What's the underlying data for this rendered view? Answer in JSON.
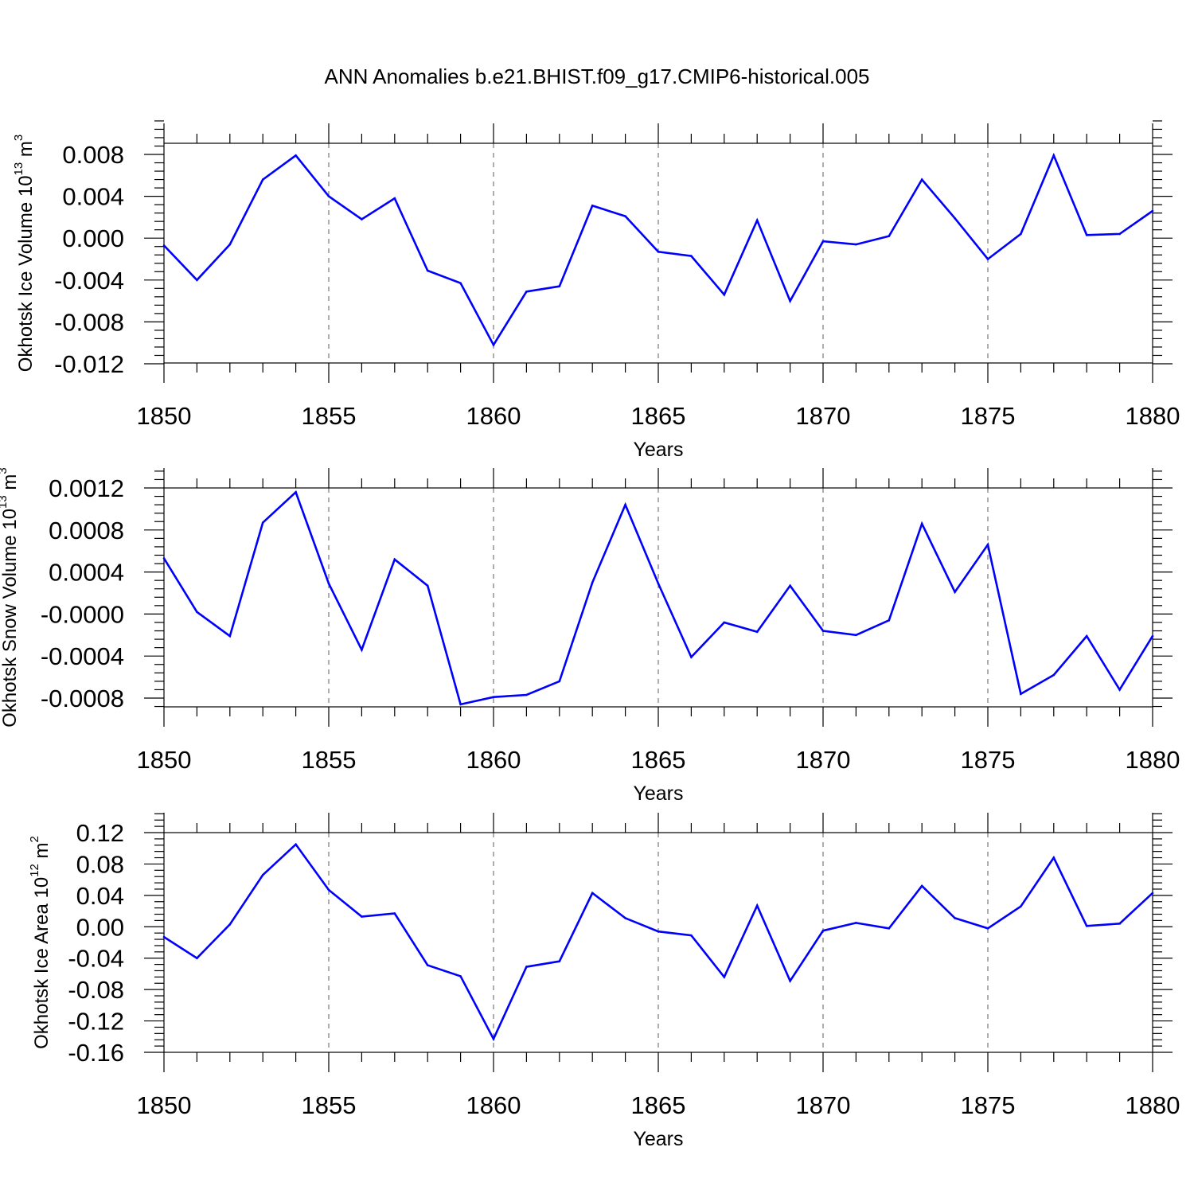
{
  "figure": {
    "title": "ANN Anomalies b.e21.BHIST.f09_g17.CMIP6-historical.005"
  },
  "chart_data": [
    {
      "type": "line",
      "title": "",
      "xlabel": "Years",
      "ylabel": "Okhotsk Ice Volume 10",
      "ylabel_exponent": "13",
      "ylabel_unit": "m",
      "ylabel_unit_exponent": "3",
      "xlim": [
        1850,
        1880
      ],
      "ylim": [
        -0.012,
        0.009
      ],
      "xticks": [
        1850,
        1855,
        1860,
        1865,
        1870,
        1875,
        1880
      ],
      "xtick_labels": [
        "1850",
        "1855",
        "1860",
        "1865",
        "1870",
        "1875",
        "1880"
      ],
      "yticks": [
        -0.012,
        -0.008,
        -0.004,
        0.0,
        0.004,
        0.008
      ],
      "ytick_labels": [
        "-0.012",
        "-0.008",
        "-0.004",
        "0.000",
        "0.004",
        "0.008"
      ],
      "grid": "vertical-dashed",
      "series": [
        {
          "name": "Okhotsk Ice Volume",
          "color": "#0000ff",
          "x": [
            1850,
            1851,
            1852,
            1853,
            1854,
            1855,
            1856,
            1857,
            1858,
            1859,
            1860,
            1861,
            1862,
            1863,
            1864,
            1865,
            1866,
            1867,
            1868,
            1869,
            1870,
            1871,
            1872,
            1873,
            1874,
            1875,
            1876,
            1877,
            1878,
            1879,
            1880
          ],
          "values": [
            -0.0007,
            -0.004,
            -0.0006,
            0.0056,
            0.0079,
            0.004,
            0.0018,
            0.0038,
            -0.0031,
            -0.0043,
            -0.0102,
            -0.0051,
            -0.0046,
            0.0031,
            0.0021,
            -0.0013,
            -0.0017,
            -0.0054,
            0.0017,
            -0.006,
            -0.0003,
            -0.0006,
            0.0002,
            0.0056,
            0.0019,
            -0.002,
            0.0004,
            0.0079,
            0.0003,
            0.0004,
            0.0026
          ]
        }
      ]
    },
    {
      "type": "line",
      "title": "",
      "xlabel": "Years",
      "ylabel": "Okhotsk Snow Volume 10",
      "ylabel_exponent": "13",
      "ylabel_unit": "m",
      "ylabel_unit_exponent": "3",
      "xlim": [
        1850,
        1880
      ],
      "ylim": [
        -0.0009,
        0.0012
      ],
      "xticks": [
        1850,
        1855,
        1860,
        1865,
        1870,
        1875,
        1880
      ],
      "xtick_labels": [
        "1850",
        "1855",
        "1860",
        "1865",
        "1870",
        "1875",
        "1880"
      ],
      "yticks": [
        -0.0008,
        -0.0004,
        0.0,
        0.0004,
        0.0008,
        0.0012
      ],
      "ytick_labels": [
        "-0.0008",
        "-0.0004",
        "-0.0000",
        "0.0004",
        "0.0008",
        "0.0012"
      ],
      "grid": "vertical-dashed",
      "series": [
        {
          "name": "Okhotsk Snow Volume",
          "color": "#0000ff",
          "x": [
            1850,
            1851,
            1852,
            1853,
            1854,
            1855,
            1856,
            1857,
            1858,
            1859,
            1860,
            1861,
            1862,
            1863,
            1864,
            1865,
            1866,
            1867,
            1868,
            1869,
            1870,
            1871,
            1872,
            1873,
            1874,
            1875,
            1876,
            1877,
            1878,
            1879,
            1880
          ],
          "values": [
            0.00053,
            2e-05,
            -0.00021,
            0.00087,
            0.00116,
            0.00029,
            -0.00034,
            0.00052,
            0.00027,
            -0.00086,
            -0.00079,
            -0.00077,
            -0.00064,
            0.0003,
            0.00104,
            0.00029,
            -0.00041,
            -8e-05,
            -0.00017,
            0.00027,
            -0.00016,
            -0.0002,
            -6e-05,
            0.00086,
            0.00021,
            0.00066,
            -0.00076,
            -0.00058,
            -0.00021,
            -0.00072,
            -0.00021
          ]
        }
      ]
    },
    {
      "type": "line",
      "title": "",
      "xlabel": "Years",
      "ylabel": "Okhotsk Ice Area 10",
      "ylabel_exponent": "12",
      "ylabel_unit": "m",
      "ylabel_unit_exponent": "2",
      "xlim": [
        1850,
        1880
      ],
      "ylim": [
        -0.16,
        0.12
      ],
      "xticks": [
        1850,
        1855,
        1860,
        1865,
        1870,
        1875,
        1880
      ],
      "xtick_labels": [
        "1850",
        "1855",
        "1860",
        "1865",
        "1870",
        "1875",
        "1880"
      ],
      "yticks": [
        -0.16,
        -0.12,
        -0.08,
        -0.04,
        0.0,
        0.04,
        0.08,
        0.12
      ],
      "ytick_labels": [
        "-0.16",
        "-0.12",
        "-0.08",
        "-0.04",
        "0.00",
        "0.04",
        "0.08",
        "0.12"
      ],
      "grid": "vertical-dashed",
      "series": [
        {
          "name": "Okhotsk Ice Area",
          "color": "#0000ff",
          "x": [
            1850,
            1851,
            1852,
            1853,
            1854,
            1855,
            1856,
            1857,
            1858,
            1859,
            1860,
            1861,
            1862,
            1863,
            1864,
            1865,
            1866,
            1867,
            1868,
            1869,
            1870,
            1871,
            1872,
            1873,
            1874,
            1875,
            1876,
            1877,
            1878,
            1879,
            1880
          ],
          "values": [
            -0.013,
            -0.04,
            0.003,
            0.066,
            0.105,
            0.047,
            0.013,
            0.017,
            -0.049,
            -0.063,
            -0.143,
            -0.051,
            -0.044,
            0.043,
            0.011,
            -0.006,
            -0.011,
            -0.064,
            0.027,
            -0.069,
            -0.005,
            0.005,
            -0.002,
            0.052,
            0.011,
            -0.002,
            0.026,
            0.088,
            0.001,
            0.004,
            0.043
          ]
        }
      ]
    }
  ]
}
